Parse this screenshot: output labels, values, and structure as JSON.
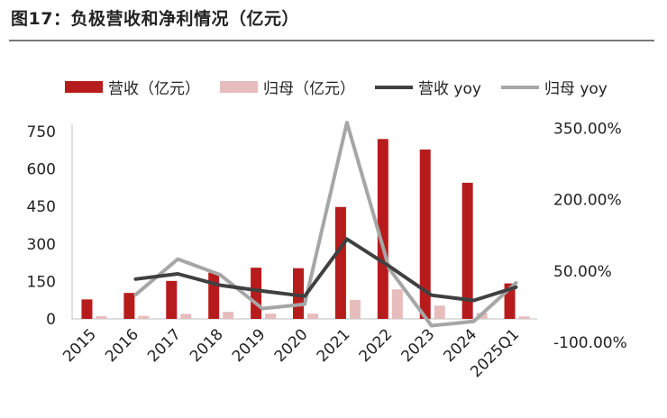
{
  "title": "图17：负极营收和净利情况（亿元）",
  "legend": {
    "revenue": "营收（亿元）",
    "profit": "归母（亿元）",
    "revenue_yoy": "营收 yoy",
    "profit_yoy": "归母 yoy"
  },
  "colors": {
    "revenue": "#b71c1c",
    "profit": "#e6bcbc",
    "revenue_yoy": "#404040",
    "profit_yoy": "#a6a6a6"
  },
  "chart_data": {
    "type": "bar",
    "categories": [
      "2015",
      "2016",
      "2017",
      "2018",
      "2019",
      "2020",
      "2021",
      "2022",
      "2023",
      "2024",
      "2025Q1"
    ],
    "series": [
      {
        "name": "营收（亿元）",
        "type": "bar",
        "axis": "left",
        "values": [
          78,
          104,
          152,
          185,
          205,
          203,
          448,
          720,
          678,
          545,
          142
        ]
      },
      {
        "name": "归母（亿元）",
        "type": "bar",
        "axis": "left",
        "values": [
          11,
          12,
          20,
          28,
          21,
          21,
          76,
          118,
          53,
          24,
          10
        ]
      },
      {
        "name": "营收 yoy",
        "type": "line",
        "axis": "right",
        "values": [
          null,
          33.0,
          44.0,
          20.0,
          8.0,
          -3.0,
          117.0,
          60.0,
          -1.0,
          -12.0,
          16.0
        ]
      },
      {
        "name": "归母 yoy",
        "type": "line",
        "axis": "right",
        "values": [
          null,
          0.0,
          75.0,
          42.0,
          -29.0,
          -20.0,
          362.0,
          55.0,
          -65.0,
          -56.0,
          25.0
        ]
      }
    ],
    "left_axis": {
      "ticks": [
        "0",
        "150",
        "300",
        "450",
        "600",
        "750"
      ],
      "ylim": [
        0,
        750
      ]
    },
    "right_axis": {
      "ticks": [
        "-100.00%",
        "50.00%",
        "200.00%",
        "350.00%"
      ],
      "ylim": [
        -100,
        400
      ]
    },
    "legend_position": "top",
    "grid": false
  }
}
